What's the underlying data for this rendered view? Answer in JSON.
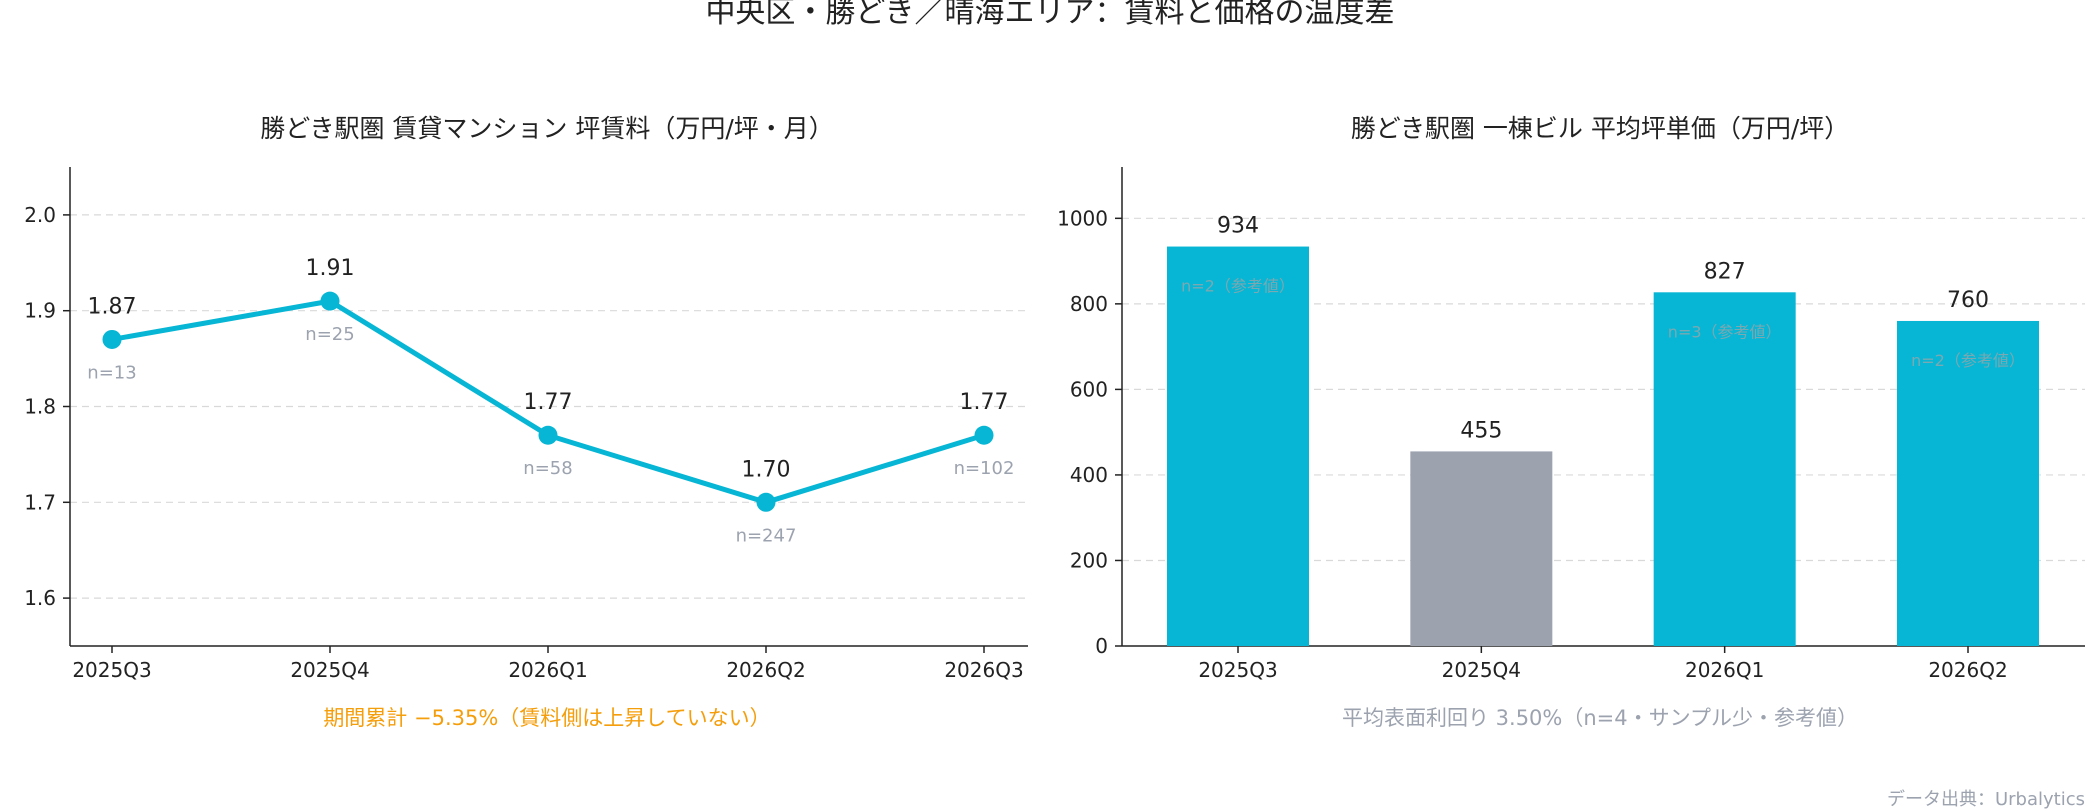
{
  "title": "中央区・勝どき／晴海エリア：賃料と価格の温度差",
  "source": "データ出典：Urbalytics",
  "colors": {
    "accent": "#06b6d4",
    "muted": "#9ca3af",
    "orange": "#f59e0b",
    "grid": "#d9d9d9",
    "text": "#222222"
  },
  "chart_data": [
    {
      "type": "line",
      "title": "勝どき駅圏 賃貸マンション 坪賃料（万円/坪・月）",
      "categories": [
        "2025Q3",
        "2025Q4",
        "2026Q1",
        "2026Q2",
        "2026Q3"
      ],
      "values": [
        1.87,
        1.91,
        1.77,
        1.7,
        1.77
      ],
      "value_labels": [
        "1.87",
        "1.91",
        "1.77",
        "1.70",
        "1.77"
      ],
      "sample_labels": [
        "n=13",
        "n=25",
        "n=58",
        "n=247",
        "n=102"
      ],
      "yticks": [
        1.6,
        1.7,
        1.8,
        1.9,
        2.0
      ],
      "ytick_labels": [
        "1.6",
        "1.7",
        "1.8",
        "1.9",
        "2.0"
      ],
      "ylim": [
        1.55,
        2.05
      ],
      "grid": true,
      "footnote": "期間累計 −5.35%（賃料側は上昇していない）"
    },
    {
      "type": "bar",
      "title": "勝どき駅圏 一棟ビル 平均坪単価（万円/坪）",
      "categories": [
        "2025Q3",
        "2025Q4",
        "2026Q1",
        "2026Q2"
      ],
      "values": [
        934,
        455,
        827,
        760
      ],
      "value_labels": [
        "934",
        "455",
        "827",
        "760"
      ],
      "bar_notes": [
        "n=2（参考値）",
        "",
        "n=3（参考値）",
        "n=2（参考値）"
      ],
      "bar_colors": [
        "#06b6d4",
        "#9ca3af",
        "#06b6d4",
        "#06b6d4"
      ],
      "yticks": [
        0,
        200,
        400,
        600,
        800,
        1000
      ],
      "ytick_labels": [
        "0",
        "200",
        "400",
        "600",
        "800",
        "1000"
      ],
      "ylim": [
        0,
        1120
      ],
      "grid": true,
      "footnote": "平均表面利回り 3.50%（n=4・サンプル少・参考値）"
    }
  ]
}
